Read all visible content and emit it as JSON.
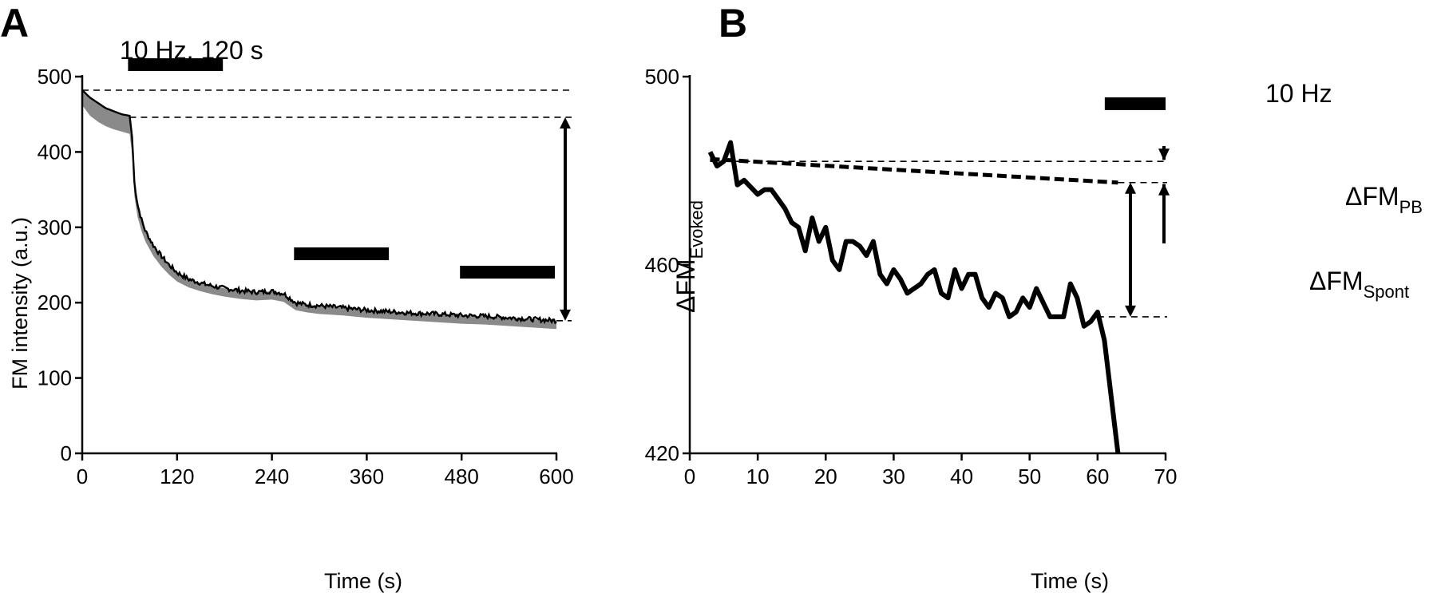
{
  "colors": {
    "line": "#000000",
    "band": "#8a8a8a",
    "background": "#ffffff"
  },
  "chart_data": [
    {
      "panel": "A",
      "type": "line",
      "xlabel": "Time (s)",
      "ylabel": "FM intensity (a.u.)",
      "xlim": [
        0,
        600
      ],
      "ylim": [
        0,
        500
      ],
      "xticks": [
        0,
        120,
        240,
        360,
        480,
        600
      ],
      "yticks": [
        0,
        100,
        200,
        300,
        400,
        500
      ],
      "stim_label": "10 Hz, 120 s",
      "stim_bars": [
        [
          60,
          180
        ],
        [
          270,
          390
        ],
        [
          480,
          600
        ]
      ],
      "reference_lines": [
        482,
        446,
        176
      ],
      "delta_label": "ΔFM",
      "delta_sub": "Evoked",
      "delta_range": [
        446,
        176
      ],
      "series": [
        {
          "name": "mean",
          "x": [
            0,
            10,
            20,
            30,
            40,
            50,
            60,
            63,
            66,
            70,
            75,
            80,
            90,
            100,
            110,
            120,
            135,
            150,
            165,
            180,
            200,
            220,
            240,
            255,
            270,
            285,
            300,
            330,
            360,
            390,
            420,
            450,
            480,
            510,
            540,
            570,
            600
          ],
          "y": [
            482,
            472,
            465,
            458,
            454,
            450,
            448,
            420,
            360,
            330,
            310,
            295,
            276,
            262,
            250,
            240,
            231,
            226,
            222,
            219,
            216,
            214,
            215,
            212,
            200,
            197,
            196,
            193,
            190,
            188,
            186,
            185,
            183,
            182,
            180,
            178,
            176
          ]
        },
        {
          "name": "lower-bound",
          "x": [
            0,
            10,
            20,
            30,
            40,
            50,
            60,
            63,
            66,
            70,
            75,
            80,
            90,
            100,
            110,
            120,
            135,
            150,
            165,
            180,
            200,
            220,
            240,
            255,
            270,
            285,
            300,
            330,
            360,
            390,
            420,
            450,
            480,
            510,
            540,
            570,
            600
          ],
          "y": [
            462,
            448,
            440,
            434,
            430,
            427,
            424,
            398,
            342,
            314,
            295,
            281,
            262,
            248,
            237,
            228,
            220,
            215,
            211,
            208,
            205,
            203,
            204,
            201,
            190,
            187,
            185,
            183,
            180,
            178,
            176,
            174,
            172,
            171,
            169,
            167,
            165
          ]
        }
      ]
    },
    {
      "panel": "B",
      "type": "line",
      "xlabel": "Time (s)",
      "xlim": [
        0,
        70
      ],
      "ylim": [
        420,
        500
      ],
      "xticks": [
        0,
        10,
        20,
        30,
        40,
        50,
        60,
        70
      ],
      "yticks": [
        420,
        460,
        500
      ],
      "stim_label": "10 Hz",
      "stim_bar": [
        60,
        70
      ],
      "reference_lines": [
        482,
        477.5,
        449
      ],
      "pb_label": "ΔFM",
      "pb_sub": "PB",
      "spont_label": "ΔFM",
      "spont_sub": "Spont",
      "series": [
        {
          "name": "trace",
          "x": [
            3,
            4,
            5,
            6,
            7,
            8,
            10,
            11,
            12,
            13,
            14,
            15,
            16,
            17,
            18,
            19,
            20,
            21,
            22,
            23,
            24,
            25,
            26,
            27,
            28,
            29,
            30,
            31,
            32,
            33,
            34,
            35,
            36,
            37,
            38,
            39,
            40,
            41,
            42,
            43,
            44,
            45,
            46,
            47,
            48,
            49,
            50,
            51,
            52,
            53,
            54,
            55,
            56,
            57,
            58,
            59,
            60,
            61,
            62,
            63
          ],
          "y": [
            484,
            481,
            482,
            486,
            477,
            478,
            475,
            476,
            476,
            474,
            472,
            469,
            468,
            463,
            470,
            465,
            468,
            461,
            459,
            465,
            465,
            464,
            462,
            465,
            458,
            456,
            459,
            457,
            454,
            455,
            456,
            458,
            459,
            454,
            453,
            459,
            455,
            458,
            458,
            453,
            451,
            454,
            453,
            449,
            450,
            453,
            451,
            455,
            452,
            449,
            449,
            449,
            456,
            453,
            447,
            448,
            450,
            444,
            432,
            420
          ]
        },
        {
          "name": "dashed-fit",
          "x": [
            3,
            63
          ],
          "y": [
            482.5,
            477.5
          ]
        }
      ]
    }
  ]
}
